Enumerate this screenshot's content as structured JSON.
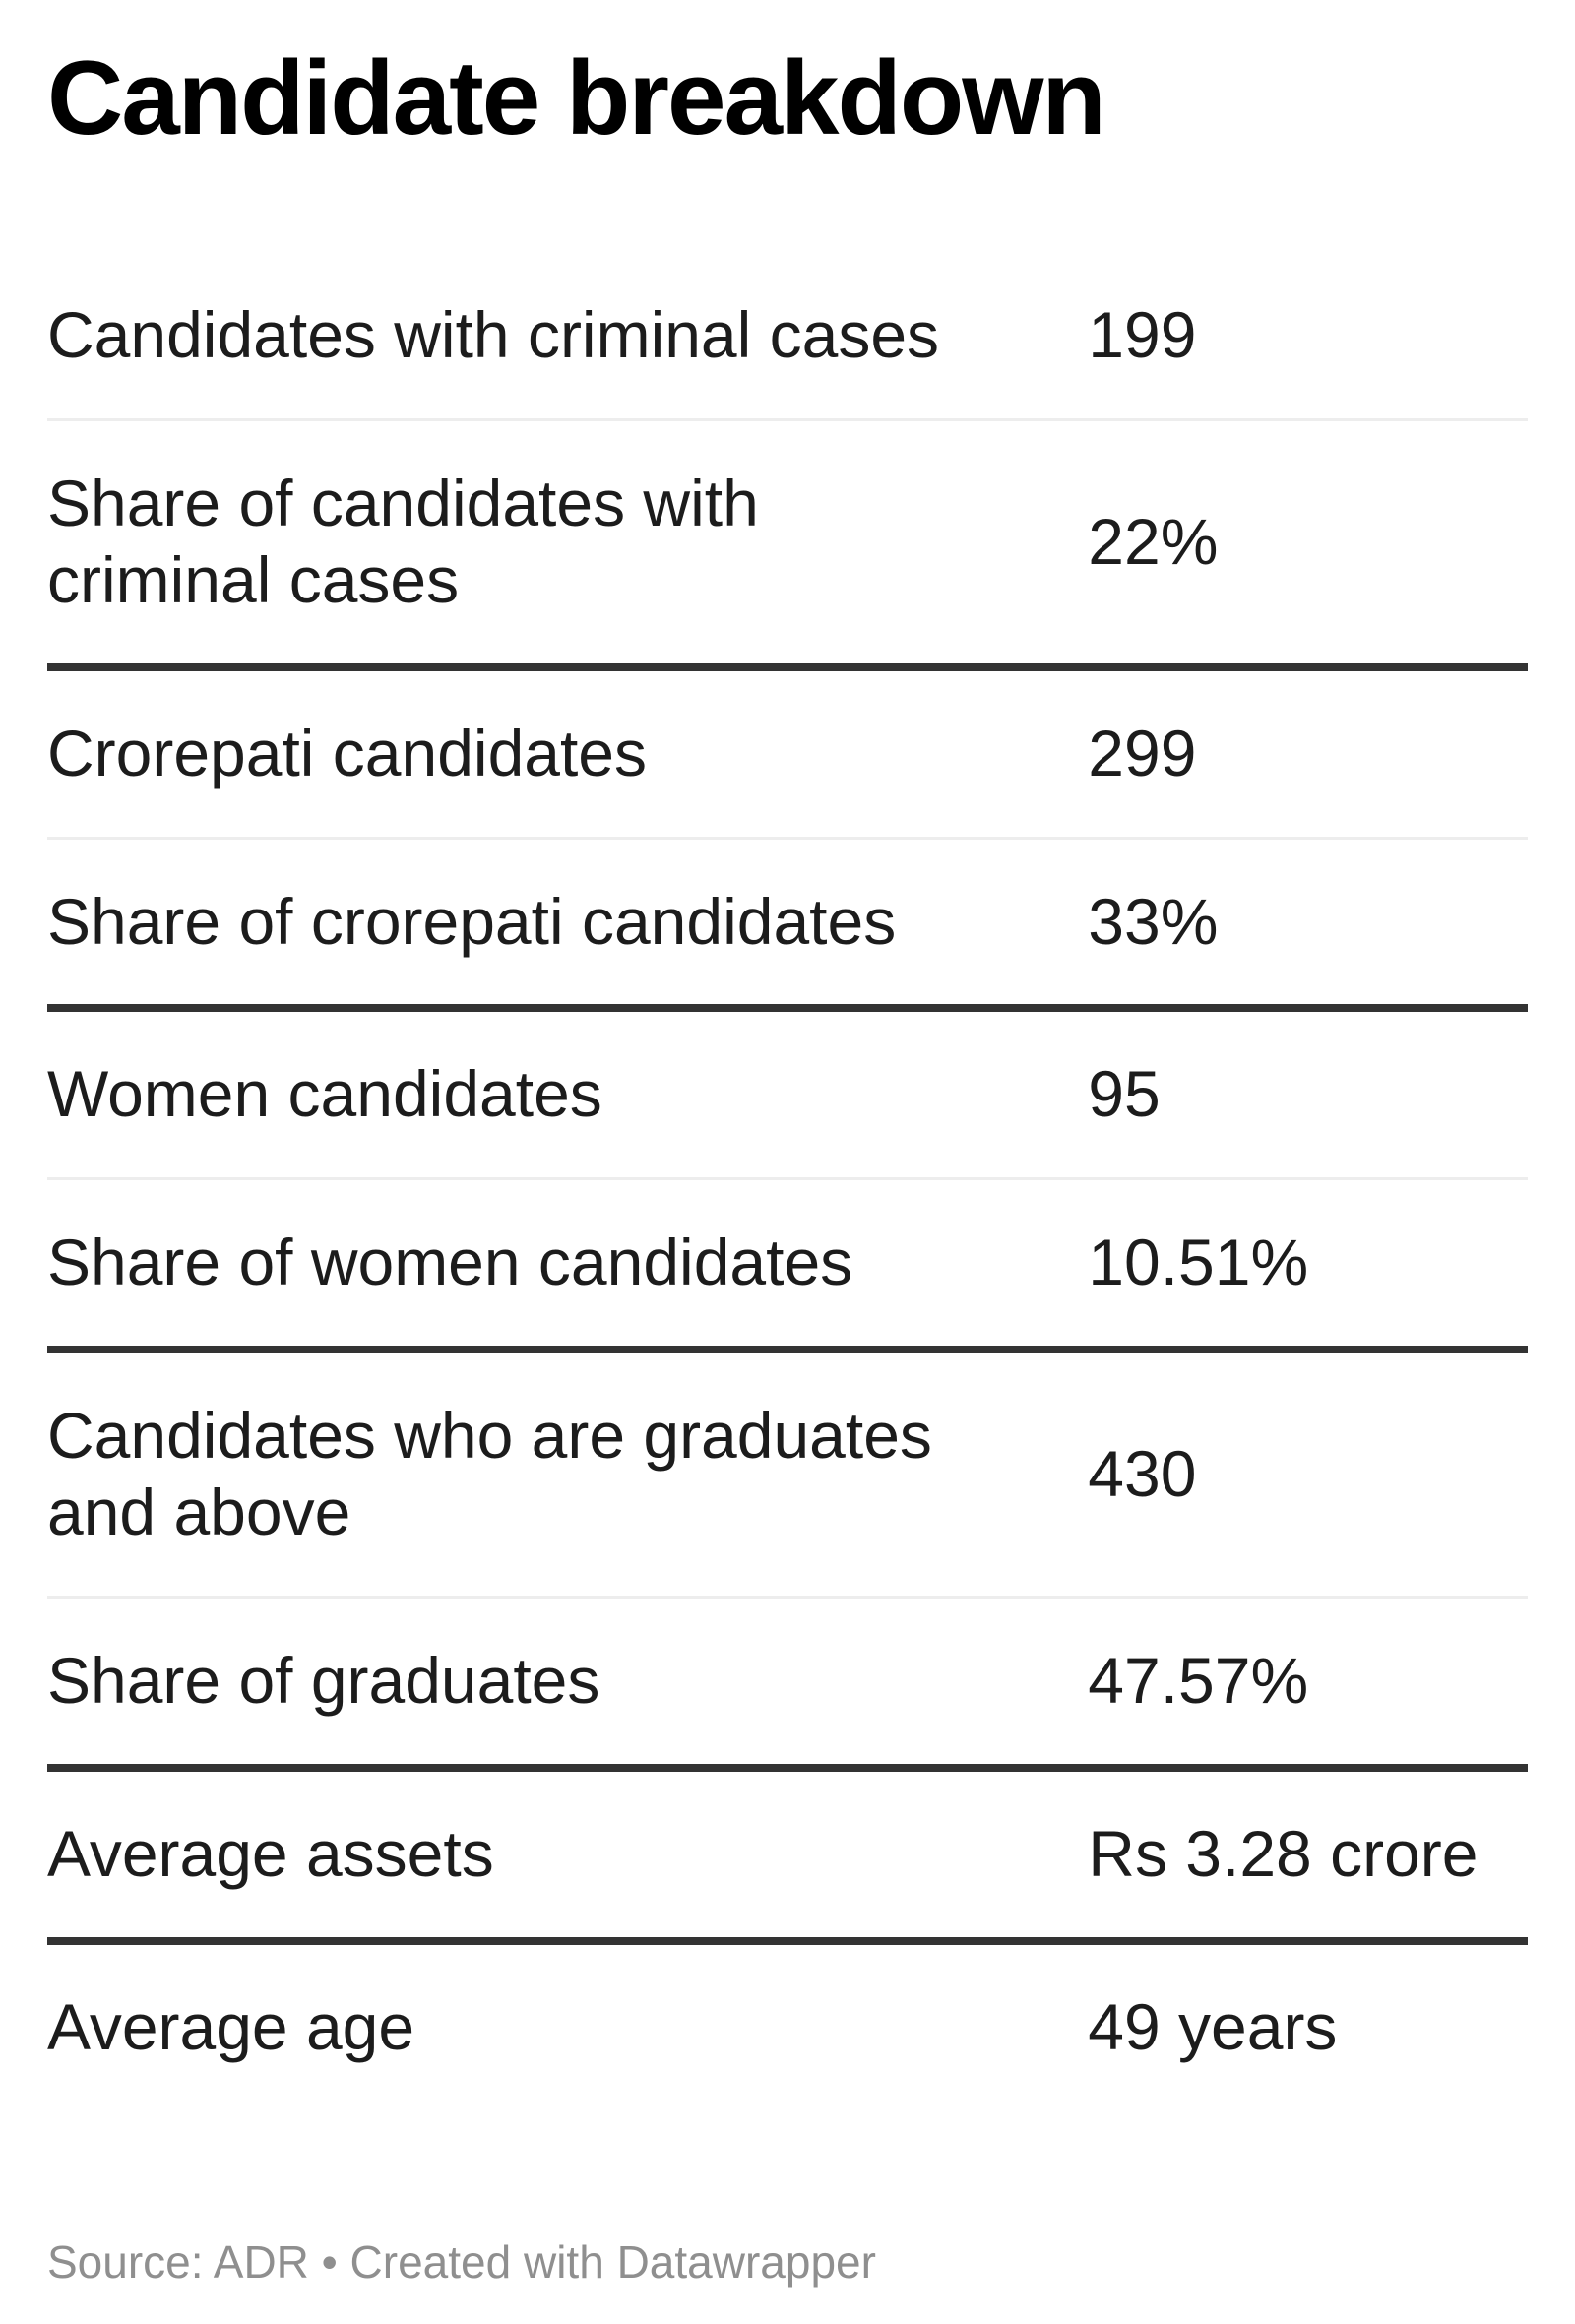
{
  "title": "Candidate breakdown",
  "table": {
    "groups": [
      {
        "rows": [
          {
            "label": "Candidates with criminal cases",
            "value": "199"
          },
          {
            "label": "Share of candidates with\ncriminal cases",
            "value": "22%"
          }
        ]
      },
      {
        "rows": [
          {
            "label": "Crorepati candidates",
            "value": "299"
          },
          {
            "label": "Share of crorepati candidates",
            "value": "33%"
          }
        ]
      },
      {
        "rows": [
          {
            "label": "Women candidates",
            "value": "95"
          },
          {
            "label": "Share of women candidates",
            "value": "10.51%"
          }
        ]
      },
      {
        "rows": [
          {
            "label": "Candidates who are graduates\nand above",
            "value": "430"
          },
          {
            "label": "Share of graduates",
            "value": "47.57%"
          }
        ]
      },
      {
        "rows": [
          {
            "label": "Average assets",
            "value": "Rs 3.28 crore"
          }
        ]
      },
      {
        "rows": [
          {
            "label": "Average age",
            "value": "49 years"
          }
        ]
      }
    ]
  },
  "footer": {
    "text": "Source: ADR • Created with Datawrapper"
  },
  "colors": {
    "background": "#ffffff",
    "title_text": "#000000",
    "body_text": "#1c1c1c",
    "thin_divider": "#ededed",
    "thick_divider": "#333333",
    "footer_text": "#8f8f8f"
  },
  "chart_data": {
    "type": "table",
    "title": "Candidate breakdown",
    "rows": [
      {
        "label": "Candidates with criminal cases",
        "value": "199"
      },
      {
        "label": "Share of candidates with criminal cases",
        "value": "22%"
      },
      {
        "label": "Crorepati candidates",
        "value": "299"
      },
      {
        "label": "Share of crorepati candidates",
        "value": "33%"
      },
      {
        "label": "Women candidates",
        "value": "95"
      },
      {
        "label": "Share of women candidates",
        "value": "10.51%"
      },
      {
        "label": "Candidates who are graduates and above",
        "value": "430"
      },
      {
        "label": "Share of graduates",
        "value": "47.57%"
      },
      {
        "label": "Average assets",
        "value": "Rs 3.28 crore"
      },
      {
        "label": "Average age",
        "value": "49 years"
      }
    ],
    "source": "ADR",
    "credit": "Created with Datawrapper",
    "layout_hints": {
      "value_column_left_aligned": true,
      "thin_divider_within_pairs": true,
      "thick_divider_between_groups": true,
      "grid": "horizontal-only"
    }
  }
}
